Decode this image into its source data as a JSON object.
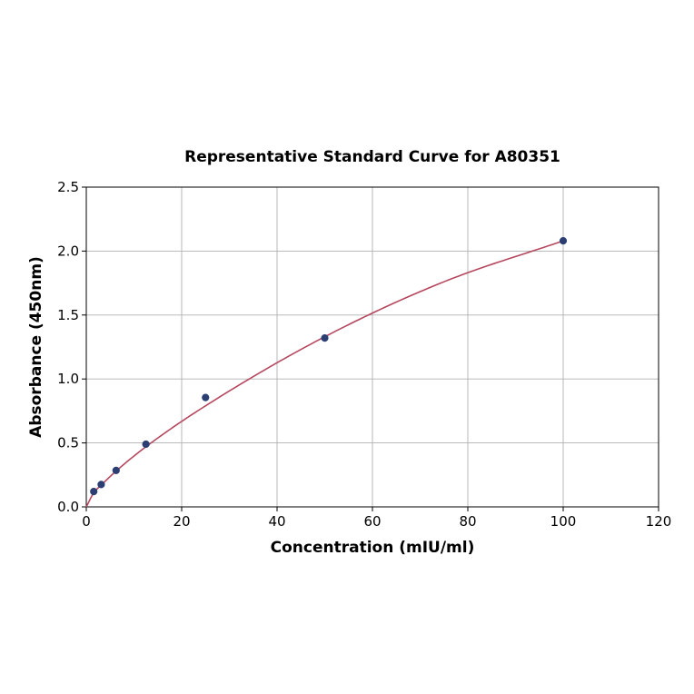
{
  "chart_data": {
    "type": "scatter",
    "title": "Representative Standard Curve for A80351",
    "xlabel": "Concentration (mIU/ml)",
    "ylabel": "Absorbance (450nm)",
    "xlim": [
      0,
      120
    ],
    "ylim": [
      0,
      2.5
    ],
    "xticks": [
      0,
      20,
      40,
      60,
      80,
      100,
      120
    ],
    "yticks": [
      0.0,
      0.5,
      1.0,
      1.5,
      2.0,
      2.5
    ],
    "xtick_labels": [
      "0",
      "20",
      "40",
      "60",
      "80",
      "100",
      "120"
    ],
    "ytick_labels": [
      "0.0",
      "0.5",
      "1.0",
      "1.5",
      "2.0",
      "2.5"
    ],
    "grid": true,
    "series": [
      {
        "kind": "points",
        "color": "#2b3f73",
        "x": [
          1.5625,
          3.125,
          6.25,
          12.5,
          25,
          50,
          100
        ],
        "y": [
          0.12,
          0.175,
          0.285,
          0.49,
          0.855,
          1.32,
          2.08
        ]
      },
      {
        "kind": "fit-curve",
        "color": "#b5485f",
        "x": [
          0,
          1.5625,
          3.125,
          6.25,
          12.5,
          25,
          50,
          75,
          100
        ],
        "y": [
          0.0,
          0.11,
          0.17,
          0.28,
          0.47,
          0.79,
          1.33,
          1.76,
          2.08
        ]
      }
    ]
  }
}
